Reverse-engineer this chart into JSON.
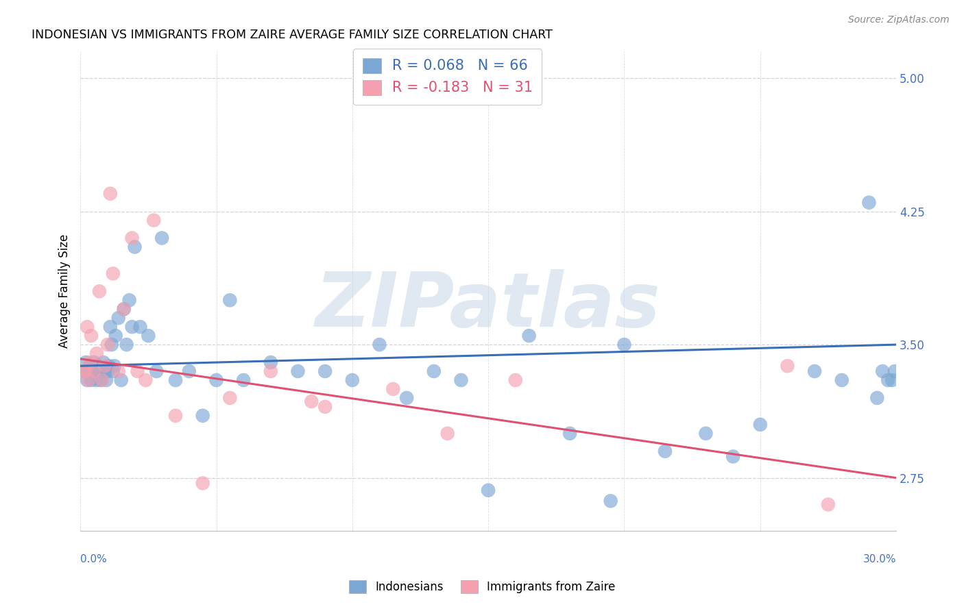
{
  "title": "INDONESIAN VS IMMIGRANTS FROM ZAIRE AVERAGE FAMILY SIZE CORRELATION CHART",
  "source": "Source: ZipAtlas.com",
  "ylabel": "Average Family Size",
  "xmin": 0.0,
  "xmax": 30.0,
  "ymin": 2.45,
  "ymax": 5.15,
  "yticks": [
    2.75,
    3.5,
    4.25,
    5.0
  ],
  "blue_color": "#7ba7d4",
  "pink_color": "#f4a0b0",
  "blue_line_color": "#3a6eb5",
  "pink_line_color": "#e05070",
  "blue_R": 0.068,
  "blue_N": 66,
  "pink_R": -0.183,
  "pink_N": 31,
  "watermark": "ZIPatlas",
  "watermark_color": "#c8d8e8",
  "background_color": "#ffffff",
  "grid_color": "#d0d0d0",
  "blue_line_y0": 3.38,
  "blue_line_y1": 3.5,
  "pink_line_y0": 3.42,
  "pink_line_y1": 2.75,
  "blue_x": [
    0.15,
    0.2,
    0.25,
    0.3,
    0.35,
    0.4,
    0.45,
    0.5,
    0.55,
    0.6,
    0.65,
    0.7,
    0.75,
    0.8,
    0.85,
    0.9,
    0.95,
    1.0,
    1.05,
    1.1,
    1.15,
    1.2,
    1.25,
    1.3,
    1.4,
    1.5,
    1.6,
    1.7,
    1.8,
    1.9,
    2.0,
    2.2,
    2.5,
    2.8,
    3.0,
    3.5,
    4.0,
    4.5,
    5.0,
    5.5,
    6.0,
    7.0,
    8.0,
    9.0,
    10.0,
    11.0,
    12.0,
    13.0,
    14.0,
    15.0,
    16.5,
    18.0,
    19.5,
    20.0,
    21.5,
    23.0,
    24.0,
    25.0,
    27.0,
    28.0,
    29.0,
    29.3,
    29.5,
    29.7,
    29.85,
    29.95
  ],
  "blue_y": [
    3.35,
    3.4,
    3.3,
    3.35,
    3.38,
    3.3,
    3.35,
    3.4,
    3.35,
    3.3,
    3.38,
    3.35,
    3.3,
    3.35,
    3.4,
    3.35,
    3.3,
    3.35,
    3.38,
    3.6,
    3.5,
    3.35,
    3.38,
    3.55,
    3.65,
    3.3,
    3.7,
    3.5,
    3.75,
    3.6,
    4.05,
    3.6,
    3.55,
    3.35,
    4.1,
    3.3,
    3.35,
    3.1,
    3.3,
    3.75,
    3.3,
    3.4,
    3.35,
    3.35,
    3.3,
    3.5,
    3.2,
    3.35,
    3.3,
    2.68,
    3.55,
    3.0,
    2.62,
    3.5,
    2.9,
    3.0,
    2.87,
    3.05,
    3.35,
    3.3,
    4.3,
    3.2,
    3.35,
    3.3,
    3.3,
    3.35
  ],
  "pink_x": [
    0.15,
    0.2,
    0.25,
    0.3,
    0.35,
    0.4,
    0.5,
    0.6,
    0.7,
    0.8,
    0.9,
    1.0,
    1.1,
    1.2,
    1.4,
    1.6,
    1.9,
    2.1,
    2.4,
    2.7,
    3.5,
    4.5,
    5.5,
    7.0,
    8.5,
    9.0,
    11.5,
    13.5,
    16.0,
    26.0,
    27.5
  ],
  "pink_y": [
    3.35,
    3.35,
    3.6,
    3.3,
    3.4,
    3.55,
    3.35,
    3.45,
    3.8,
    3.3,
    3.38,
    3.5,
    4.35,
    3.9,
    3.35,
    3.7,
    4.1,
    3.35,
    3.3,
    4.2,
    3.1,
    2.72,
    3.2,
    3.35,
    3.18,
    3.15,
    3.25,
    3.0,
    3.3,
    3.38,
    2.6
  ]
}
